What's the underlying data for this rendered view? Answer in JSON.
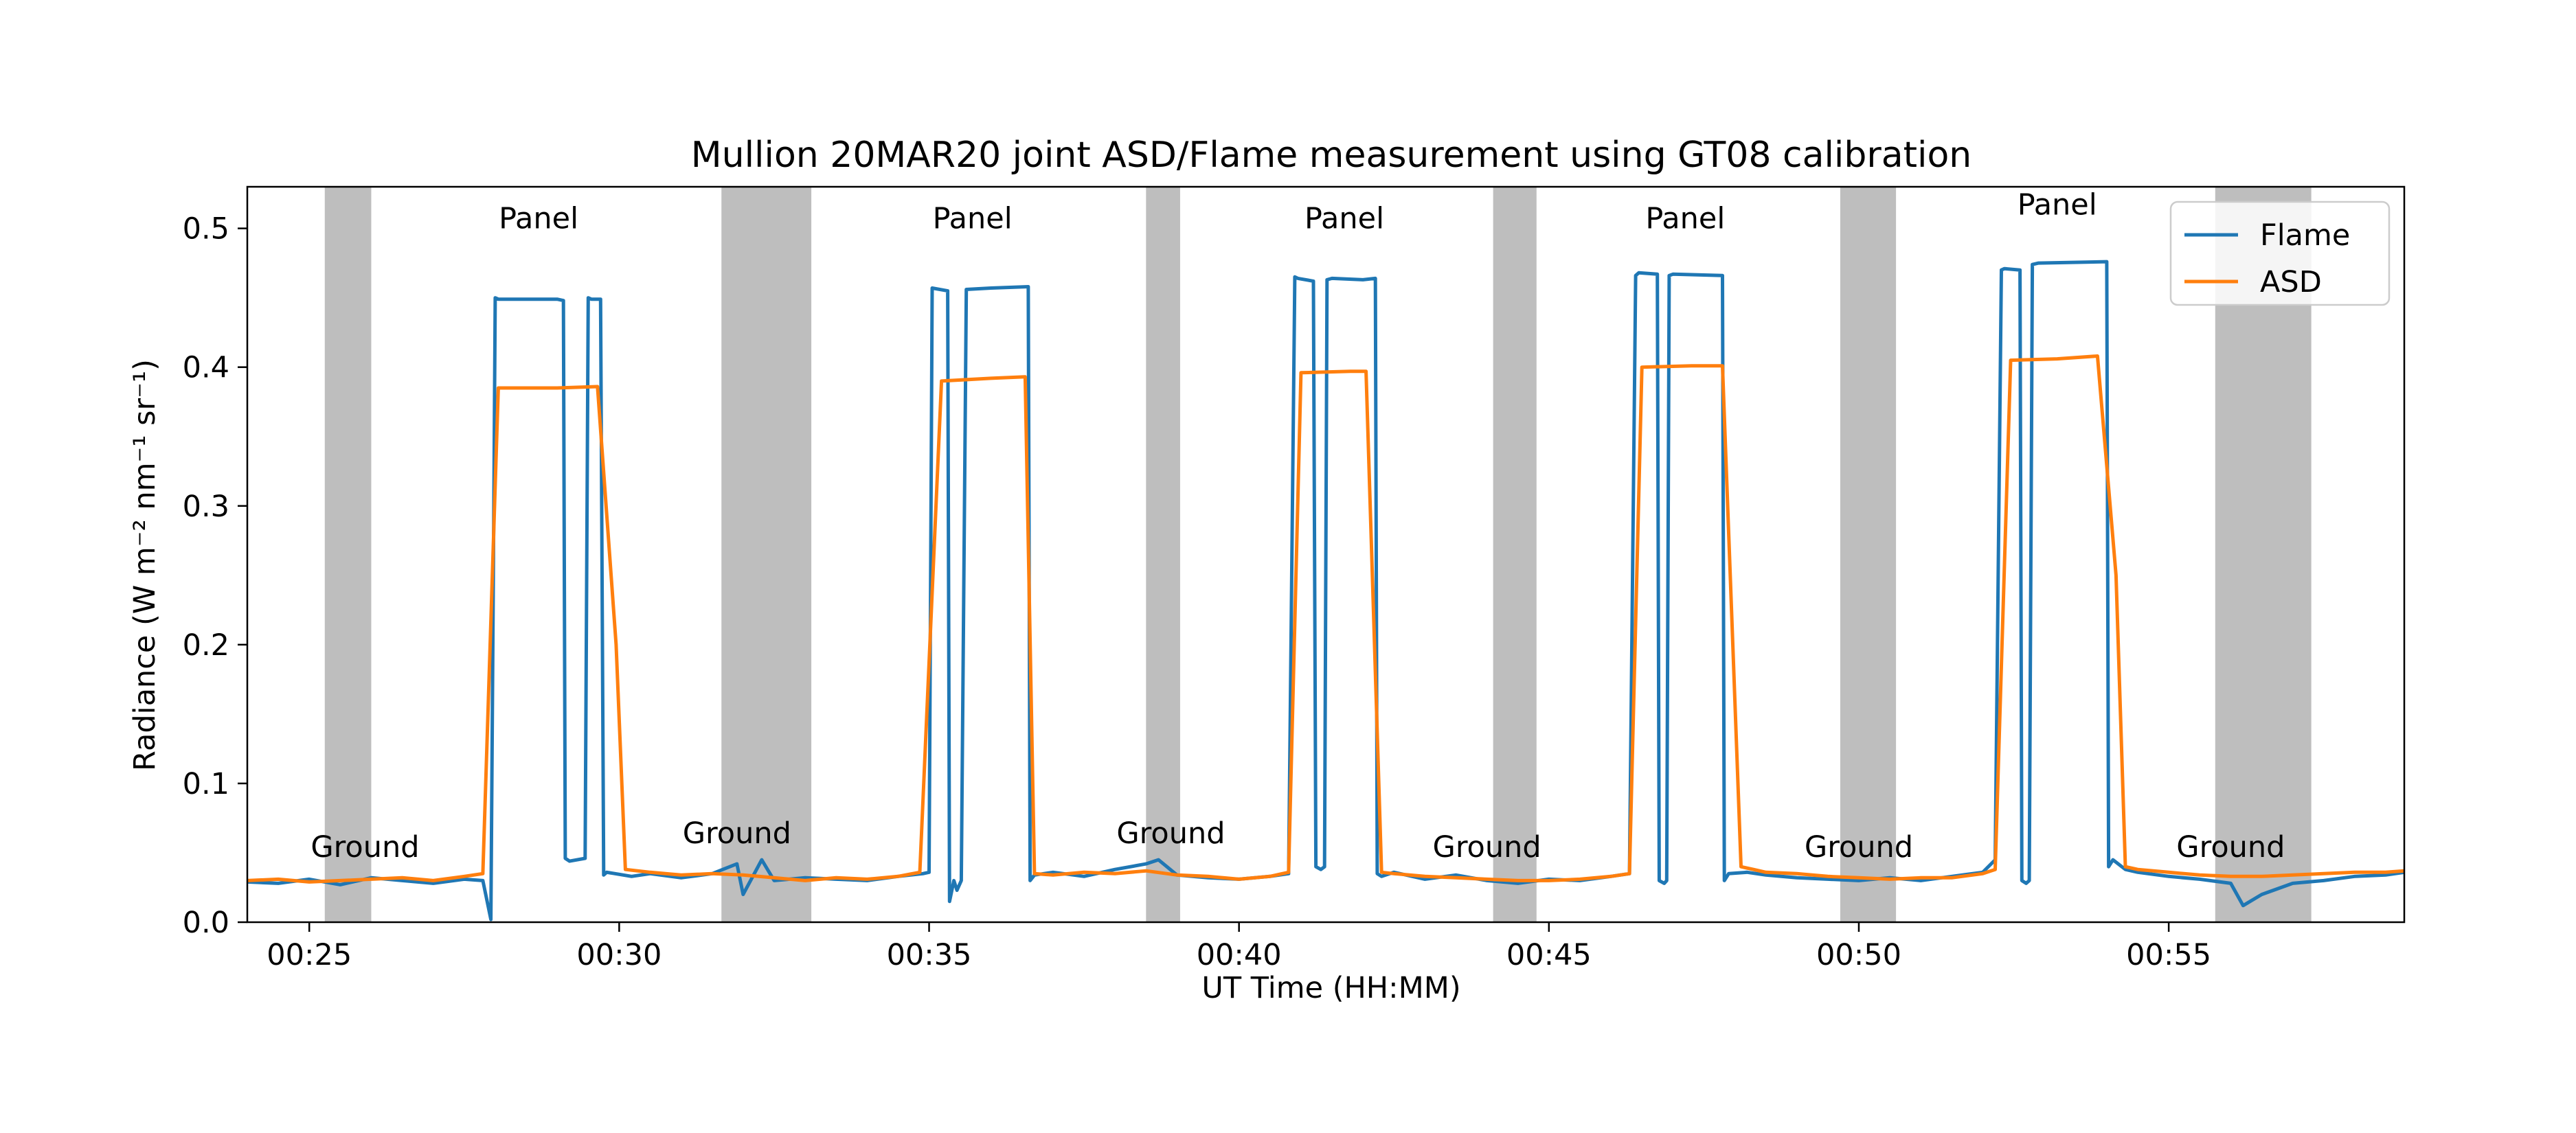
{
  "chart_data": {
    "type": "line",
    "title": "Mullion 20MAR20 joint ASD/Flame measurement using GT08 calibration",
    "xlabel": "UT Time (HH:MM)",
    "ylabel": "Radiance (W m⁻² nm⁻¹ sr⁻¹)",
    "x_unit": "minutes after 00:00 UT",
    "xlim": [
      24.0,
      58.8
    ],
    "ylim": [
      0.0,
      0.53
    ],
    "x_ticks": [
      25,
      30,
      35,
      40,
      45,
      50,
      55
    ],
    "x_tick_labels": [
      "00:25",
      "00:30",
      "00:35",
      "00:40",
      "00:45",
      "00:50",
      "00:55"
    ],
    "y_ticks": [
      0.0,
      0.1,
      0.2,
      0.3,
      0.4,
      0.5
    ],
    "y_tick_labels": [
      "0.0",
      "0.1",
      "0.2",
      "0.3",
      "0.4",
      "0.5"
    ],
    "grid": false,
    "legend_position": "top-right",
    "shaded_regions": [
      [
        25.25,
        26.0
      ],
      [
        31.65,
        33.1
      ],
      [
        38.5,
        39.05
      ],
      [
        44.1,
        44.8
      ],
      [
        49.7,
        50.6
      ],
      [
        55.75,
        57.3
      ]
    ],
    "shaded_color": "#bebebe",
    "annotations": [
      {
        "text": "Panel",
        "x": 28.7,
        "y": 0.5
      },
      {
        "text": "Panel",
        "x": 35.7,
        "y": 0.5
      },
      {
        "text": "Panel",
        "x": 41.7,
        "y": 0.5
      },
      {
        "text": "Panel",
        "x": 47.2,
        "y": 0.5
      },
      {
        "text": "Panel",
        "x": 53.2,
        "y": 0.51
      },
      {
        "text": "Ground",
        "x": 25.9,
        "y": 0.047
      },
      {
        "text": "Ground",
        "x": 31.9,
        "y": 0.057
      },
      {
        "text": "Ground",
        "x": 38.9,
        "y": 0.057
      },
      {
        "text": "Ground",
        "x": 44.0,
        "y": 0.047
      },
      {
        "text": "Ground",
        "x": 50.0,
        "y": 0.047
      },
      {
        "text": "Ground",
        "x": 56.0,
        "y": 0.047
      }
    ],
    "series": [
      {
        "name": "Flame",
        "color": "#1f77b4",
        "x": [
          24.0,
          24.5,
          25.0,
          25.5,
          26.0,
          26.5,
          27.0,
          27.5,
          27.8,
          27.93,
          27.97,
          28.0,
          28.05,
          28.5,
          29.0,
          29.1,
          29.13,
          29.2,
          29.45,
          29.5,
          29.55,
          29.6,
          29.7,
          29.75,
          29.8,
          30.2,
          30.5,
          31.0,
          31.5,
          31.9,
          32.0,
          32.3,
          32.5,
          33.0,
          33.5,
          34.0,
          34.5,
          34.9,
          35.0,
          35.05,
          35.3,
          35.33,
          35.4,
          35.45,
          35.52,
          35.6,
          36.0,
          36.6,
          36.63,
          36.7,
          37.0,
          37.5,
          38.0,
          38.5,
          38.7,
          39.0,
          39.5,
          40.0,
          40.5,
          40.8,
          40.9,
          40.95,
          41.2,
          41.24,
          41.32,
          41.38,
          41.42,
          41.5,
          42.0,
          42.2,
          42.23,
          42.3,
          42.5,
          43.0,
          43.5,
          44.0,
          44.5,
          45.0,
          45.5,
          46.0,
          46.3,
          46.4,
          46.45,
          46.75,
          46.78,
          46.86,
          46.9,
          46.94,
          47.0,
          47.8,
          47.83,
          47.9,
          48.2,
          48.5,
          49.0,
          49.5,
          50.0,
          50.5,
          51.0,
          51.5,
          52.0,
          52.2,
          52.3,
          52.35,
          52.6,
          52.63,
          52.7,
          52.75,
          52.8,
          52.9,
          54.0,
          54.03,
          54.1,
          54.3,
          54.5,
          55.0,
          55.5,
          56.0,
          56.2,
          56.5,
          57.0,
          57.5,
          58.0,
          58.5,
          58.8
        ],
        "y": [
          0.029,
          0.028,
          0.031,
          0.027,
          0.032,
          0.03,
          0.028,
          0.031,
          0.03,
          0.002,
          0.25,
          0.45,
          0.449,
          0.449,
          0.449,
          0.448,
          0.046,
          0.044,
          0.046,
          0.45,
          0.449,
          0.449,
          0.449,
          0.034,
          0.036,
          0.033,
          0.035,
          0.032,
          0.035,
          0.042,
          0.02,
          0.045,
          0.03,
          0.032,
          0.031,
          0.03,
          0.033,
          0.035,
          0.036,
          0.457,
          0.455,
          0.015,
          0.03,
          0.023,
          0.03,
          0.456,
          0.457,
          0.458,
          0.03,
          0.034,
          0.036,
          0.033,
          0.038,
          0.042,
          0.045,
          0.034,
          0.032,
          0.031,
          0.033,
          0.035,
          0.465,
          0.464,
          0.462,
          0.04,
          0.038,
          0.04,
          0.463,
          0.464,
          0.463,
          0.464,
          0.035,
          0.033,
          0.036,
          0.031,
          0.034,
          0.03,
          0.028,
          0.031,
          0.03,
          0.033,
          0.035,
          0.466,
          0.468,
          0.467,
          0.03,
          0.028,
          0.03,
          0.466,
          0.467,
          0.466,
          0.03,
          0.035,
          0.036,
          0.034,
          0.032,
          0.031,
          0.03,
          0.032,
          0.03,
          0.033,
          0.036,
          0.045,
          0.47,
          0.471,
          0.47,
          0.03,
          0.028,
          0.03,
          0.474,
          0.475,
          0.476,
          0.04,
          0.045,
          0.038,
          0.036,
          0.033,
          0.031,
          0.028,
          0.012,
          0.02,
          0.028,
          0.03,
          0.033,
          0.034,
          0.036
        ]
      },
      {
        "name": "ASD",
        "color": "#ff7f0e",
        "x": [
          24.0,
          24.5,
          25.0,
          25.5,
          26.0,
          26.5,
          27.0,
          27.5,
          27.8,
          28.05,
          28.3,
          29.0,
          29.65,
          29.95,
          30.1,
          30.5,
          31.0,
          31.5,
          32.0,
          32.5,
          33.0,
          33.5,
          34.0,
          34.5,
          34.85,
          35.2,
          36.0,
          36.55,
          36.7,
          37.0,
          37.5,
          38.0,
          38.5,
          39.0,
          39.5,
          40.0,
          40.5,
          40.8,
          41.0,
          41.8,
          42.05,
          42.3,
          42.5,
          43.0,
          43.5,
          44.0,
          44.5,
          45.0,
          45.5,
          46.0,
          46.3,
          46.5,
          47.3,
          47.8,
          48.1,
          48.3,
          48.5,
          49.0,
          49.5,
          50.0,
          50.5,
          51.0,
          51.5,
          52.0,
          52.2,
          52.45,
          53.2,
          53.85,
          54.15,
          54.3,
          54.5,
          55.0,
          55.5,
          56.0,
          56.5,
          57.0,
          57.5,
          58.0,
          58.5,
          58.8
        ],
        "y": [
          0.03,
          0.031,
          0.029,
          0.03,
          0.031,
          0.032,
          0.03,
          0.033,
          0.035,
          0.385,
          0.385,
          0.385,
          0.386,
          0.2,
          0.038,
          0.036,
          0.034,
          0.035,
          0.034,
          0.032,
          0.03,
          0.032,
          0.031,
          0.033,
          0.036,
          0.39,
          0.392,
          0.393,
          0.035,
          0.034,
          0.036,
          0.035,
          0.037,
          0.034,
          0.033,
          0.031,
          0.033,
          0.036,
          0.396,
          0.397,
          0.397,
          0.036,
          0.035,
          0.033,
          0.032,
          0.031,
          0.03,
          0.03,
          0.031,
          0.033,
          0.035,
          0.4,
          0.401,
          0.401,
          0.04,
          0.038,
          0.036,
          0.035,
          0.033,
          0.032,
          0.031,
          0.032,
          0.032,
          0.035,
          0.038,
          0.405,
          0.406,
          0.408,
          0.25,
          0.04,
          0.038,
          0.036,
          0.034,
          0.033,
          0.033,
          0.034,
          0.035,
          0.036,
          0.036,
          0.037
        ]
      }
    ]
  }
}
